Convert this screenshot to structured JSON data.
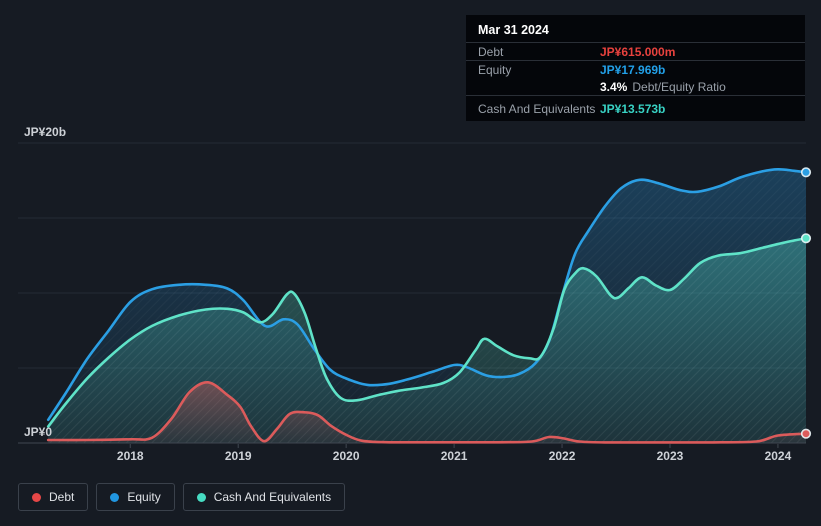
{
  "page": {
    "background": "#161b23",
    "tooltip_background": "#04060a",
    "gridline_color": "#242b34",
    "axis_line_color": "#404751",
    "axis_text_color": "#ced2d7"
  },
  "tooltip": {
    "date": "Mar 31 2024",
    "debt_label": "Debt",
    "debt_value": "JP¥615.000m",
    "debt_color": "#e8423e",
    "equity_label": "Equity",
    "equity_value": "JP¥17.969b",
    "equity_color": "#22a0e8",
    "ratio_value": "3.4%",
    "ratio_label": "Debt/Equity Ratio",
    "cash_label": "Cash And Equivalents",
    "cash_value": "JP¥13.573b",
    "cash_color": "#38d2c4"
  },
  "legend": {
    "items": [
      {
        "key": "debt",
        "label": "Debt",
        "color": "#e64747"
      },
      {
        "key": "equity",
        "label": "Equity",
        "color": "#2196e0"
      },
      {
        "key": "cash",
        "label": "Cash And Equivalents",
        "color": "#46dcc2"
      }
    ]
  },
  "chart_data": {
    "type": "area",
    "grid": true,
    "legend_position": "bottom-left",
    "x_axis": {
      "start": 2016.96,
      "end": 2024.26,
      "ticks": [
        2018,
        2019,
        2020,
        2021,
        2022,
        2023,
        2024
      ]
    },
    "y_axis": {
      "min": 0,
      "max": 20,
      "gridline_step": 5,
      "unit": "JP¥ billions",
      "label_top": "JP¥20b",
      "label_zero": "JP¥0"
    },
    "series": [
      {
        "key": "debt",
        "name": "Debt",
        "color": "#db5b5b",
        "fill_top": "rgba(220,90,90,0.40)",
        "fill_bottom": "rgba(220,90,90,0.06)",
        "end_value_label": "JP¥615.000m",
        "points": [
          [
            2017.24,
            0.2
          ],
          [
            2017.6,
            0.2
          ],
          [
            2018.0,
            0.25
          ],
          [
            2018.2,
            0.35
          ],
          [
            2018.38,
            1.6
          ],
          [
            2018.55,
            3.4
          ],
          [
            2018.72,
            4.05
          ],
          [
            2018.9,
            3.2
          ],
          [
            2019.02,
            2.4
          ],
          [
            2019.12,
            1.1
          ],
          [
            2019.24,
            0.12
          ],
          [
            2019.36,
            0.95
          ],
          [
            2019.48,
            1.95
          ],
          [
            2019.62,
            2.05
          ],
          [
            2019.74,
            1.85
          ],
          [
            2019.86,
            1.15
          ],
          [
            2020.0,
            0.55
          ],
          [
            2020.15,
            0.15
          ],
          [
            2020.4,
            0.05
          ],
          [
            2020.9,
            0.05
          ],
          [
            2021.4,
            0.05
          ],
          [
            2021.72,
            0.1
          ],
          [
            2021.88,
            0.4
          ],
          [
            2022.02,
            0.3
          ],
          [
            2022.16,
            0.1
          ],
          [
            2022.4,
            0.04
          ],
          [
            2022.9,
            0.04
          ],
          [
            2023.4,
            0.04
          ],
          [
            2023.8,
            0.1
          ],
          [
            2024.0,
            0.5
          ],
          [
            2024.26,
            0.62
          ]
        ]
      },
      {
        "key": "equity",
        "name": "Equity",
        "color": "#2b9fe4",
        "fill_top": "rgba(40,150,220,0.30)",
        "fill_bottom": "rgba(40,150,220,0.04)",
        "end_value_label": "JP¥17.969b",
        "points": [
          [
            2017.24,
            1.55
          ],
          [
            2017.4,
            3.3
          ],
          [
            2017.6,
            5.6
          ],
          [
            2017.8,
            7.5
          ],
          [
            2018.0,
            9.4
          ],
          [
            2018.2,
            10.25
          ],
          [
            2018.45,
            10.55
          ],
          [
            2018.7,
            10.55
          ],
          [
            2018.9,
            10.3
          ],
          [
            2019.05,
            9.5
          ],
          [
            2019.25,
            7.8
          ],
          [
            2019.42,
            8.25
          ],
          [
            2019.55,
            7.9
          ],
          [
            2019.7,
            6.3
          ],
          [
            2019.85,
            4.9
          ],
          [
            2020.0,
            4.3
          ],
          [
            2020.2,
            3.87
          ],
          [
            2020.4,
            3.95
          ],
          [
            2020.6,
            4.3
          ],
          [
            2020.8,
            4.75
          ],
          [
            2021.0,
            5.2
          ],
          [
            2021.12,
            5.05
          ],
          [
            2021.3,
            4.5
          ],
          [
            2021.45,
            4.4
          ],
          [
            2021.6,
            4.6
          ],
          [
            2021.75,
            5.3
          ],
          [
            2021.88,
            6.8
          ],
          [
            2022.0,
            9.8
          ],
          [
            2022.12,
            12.6
          ],
          [
            2022.25,
            14.2
          ],
          [
            2022.4,
            15.8
          ],
          [
            2022.55,
            17.0
          ],
          [
            2022.72,
            17.55
          ],
          [
            2022.9,
            17.3
          ],
          [
            2023.1,
            16.85
          ],
          [
            2023.25,
            16.75
          ],
          [
            2023.45,
            17.1
          ],
          [
            2023.65,
            17.7
          ],
          [
            2023.85,
            18.1
          ],
          [
            2024.0,
            18.25
          ],
          [
            2024.15,
            18.15
          ],
          [
            2024.26,
            18.05
          ]
        ]
      },
      {
        "key": "cash",
        "name": "Cash And Equivalents",
        "color": "#5fe3c8",
        "fill_top": "rgba(85,220,200,0.34)",
        "fill_bottom": "rgba(85,220,200,0.10)",
        "end_value_label": "JP¥13.573b",
        "points": [
          [
            2017.24,
            1.1
          ],
          [
            2017.4,
            2.6
          ],
          [
            2017.6,
            4.3
          ],
          [
            2017.8,
            5.7
          ],
          [
            2018.0,
            6.9
          ],
          [
            2018.2,
            7.8
          ],
          [
            2018.45,
            8.5
          ],
          [
            2018.7,
            8.9
          ],
          [
            2018.9,
            8.95
          ],
          [
            2019.05,
            8.7
          ],
          [
            2019.2,
            8.05
          ],
          [
            2019.32,
            8.6
          ],
          [
            2019.45,
            9.9
          ],
          [
            2019.52,
            9.95
          ],
          [
            2019.62,
            8.6
          ],
          [
            2019.72,
            6.3
          ],
          [
            2019.82,
            4.3
          ],
          [
            2019.95,
            3.0
          ],
          [
            2020.1,
            2.85
          ],
          [
            2020.3,
            3.2
          ],
          [
            2020.5,
            3.5
          ],
          [
            2020.7,
            3.7
          ],
          [
            2020.9,
            4.0
          ],
          [
            2021.05,
            4.7
          ],
          [
            2021.2,
            6.2
          ],
          [
            2021.28,
            6.95
          ],
          [
            2021.4,
            6.45
          ],
          [
            2021.55,
            5.85
          ],
          [
            2021.7,
            5.65
          ],
          [
            2021.8,
            5.75
          ],
          [
            2021.92,
            7.6
          ],
          [
            2022.02,
            10.2
          ],
          [
            2022.12,
            11.3
          ],
          [
            2022.2,
            11.65
          ],
          [
            2022.32,
            11.1
          ],
          [
            2022.45,
            9.85
          ],
          [
            2022.52,
            9.7
          ],
          [
            2022.62,
            10.35
          ],
          [
            2022.74,
            11.05
          ],
          [
            2022.87,
            10.5
          ],
          [
            2023.0,
            10.2
          ],
          [
            2023.13,
            10.95
          ],
          [
            2023.28,
            12.0
          ],
          [
            2023.45,
            12.5
          ],
          [
            2023.65,
            12.65
          ],
          [
            2023.85,
            13.0
          ],
          [
            2024.05,
            13.35
          ],
          [
            2024.26,
            13.65
          ]
        ]
      }
    ]
  }
}
